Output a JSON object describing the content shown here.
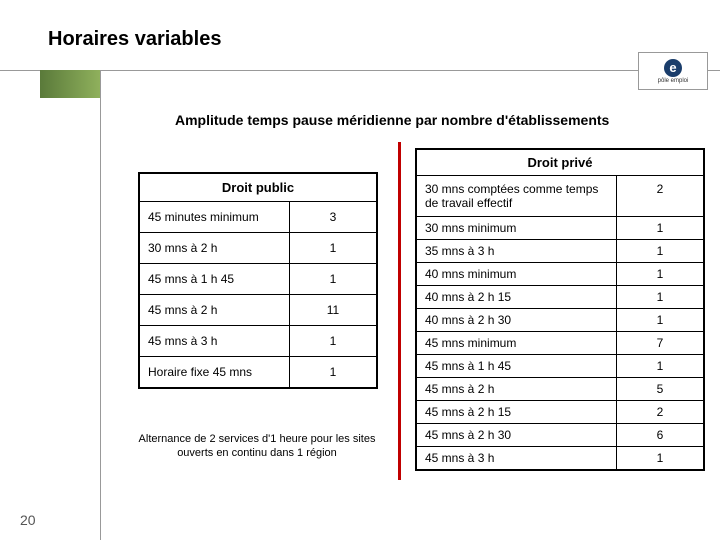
{
  "header": {
    "title": "Horaires variables",
    "logo_text": "pôle emploi",
    "logo_letter": "e"
  },
  "subtitle": "Amplitude temps pause méridienne par nombre d'établissements",
  "left_table": {
    "header": "Droit public",
    "rows": [
      {
        "label": "45 minutes minimum",
        "value": "3"
      },
      {
        "label": "30 mns à 2 h",
        "value": "1"
      },
      {
        "label": "45 mns à 1 h 45",
        "value": "1"
      },
      {
        "label": "45 mns à 2 h",
        "value": "11"
      },
      {
        "label": "45 mns à 3 h",
        "value": "1"
      },
      {
        "label": "Horaire fixe 45 mns",
        "value": "1"
      }
    ]
  },
  "note": "Alternance de 2 services d'1 heure pour les sites ouverts en continu dans 1 région",
  "right_table": {
    "header": "Droit privé",
    "rows": [
      {
        "label": "30 mns comptées comme temps de travail effectif",
        "value": "2"
      },
      {
        "label": "30 mns minimum",
        "value": "1"
      },
      {
        "label": "35 mns à 3 h",
        "value": "1"
      },
      {
        "label": "40 mns minimum",
        "value": "1"
      },
      {
        "label": "40 mns à 2 h 15",
        "value": "1"
      },
      {
        "label": "40 mns à 2 h 30",
        "value": "1"
      },
      {
        "label": "45 mns minimum",
        "value": "7"
      },
      {
        "label": "45 mns à 1 h 45",
        "value": "1"
      },
      {
        "label": "45 mns à 2 h",
        "value": "5"
      },
      {
        "label": "45 mns à 2 h 15",
        "value": "2"
      },
      {
        "label": "45 mns à 2 h 30",
        "value": "6"
      },
      {
        "label": "45 mns à 3 h",
        "value": "1"
      }
    ]
  },
  "page_number": "20",
  "colors": {
    "accent_red": "#c00000",
    "gradient_start": "#5a7a3a",
    "gradient_end": "#8fb05c",
    "logo_bg": "#1a3d6b"
  }
}
